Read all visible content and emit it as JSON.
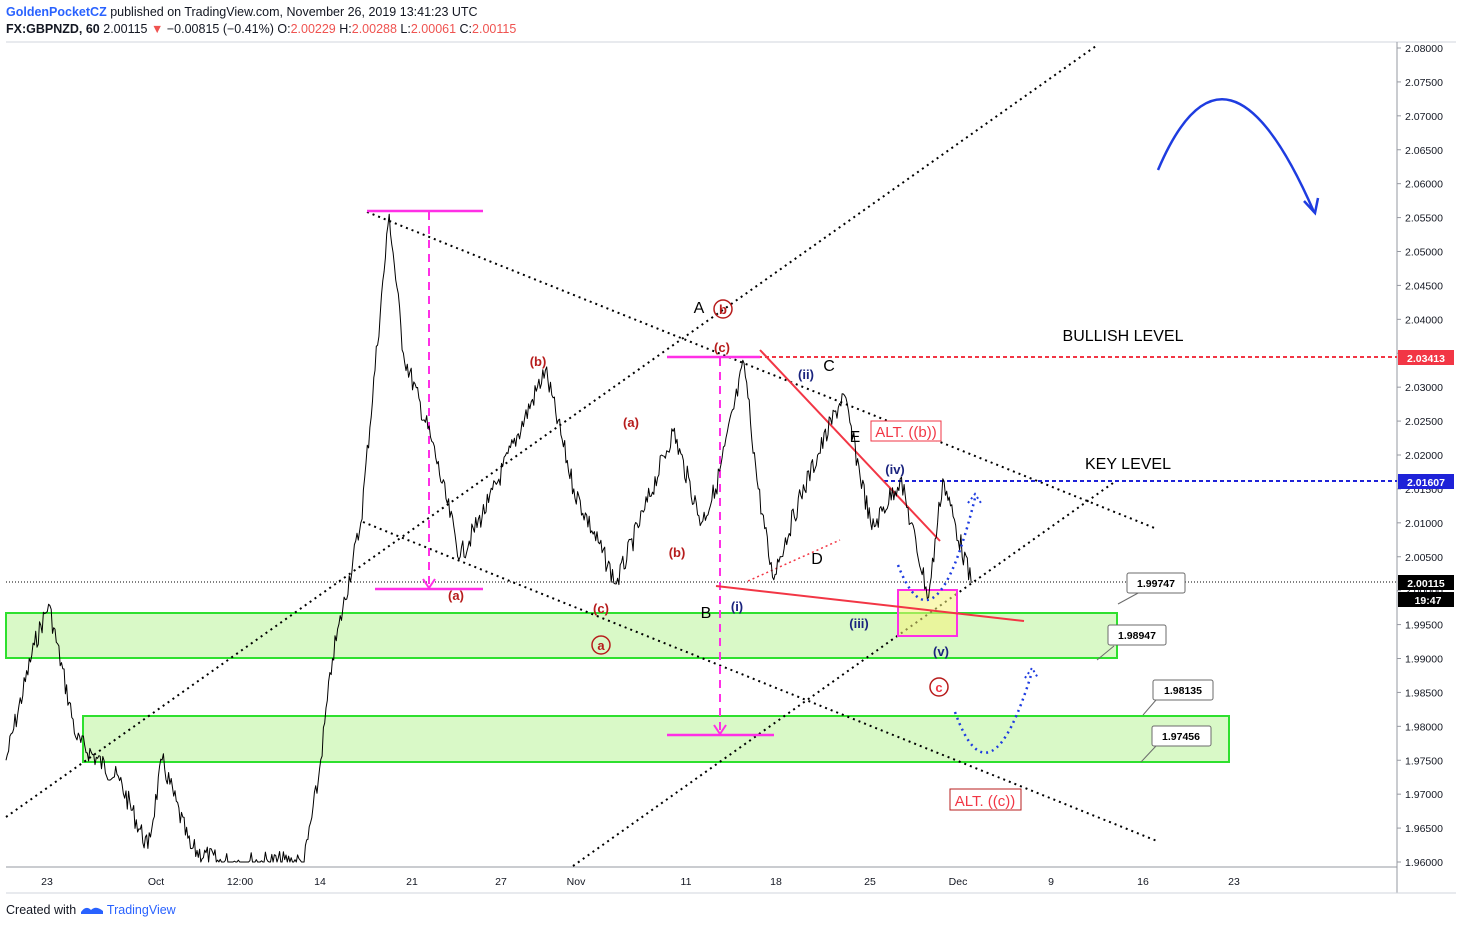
{
  "header": {
    "author": "GoldenPocketCZ",
    "published": "published on TradingView.com, November 26, 2019 13:41:23 UTC",
    "symbol": "FX:GBPNZD, 60",
    "last": "2.00115",
    "change": "−0.00815 (−0.41%)",
    "o_label": "O:",
    "o": "2.00229",
    "h_label": "H:",
    "h": "2.00288",
    "l_label": "L:",
    "l": "2.00061",
    "c_label": "C:",
    "c": "2.00115"
  },
  "footer": {
    "created_with": "Created with",
    "brand": "TradingView"
  },
  "price_axis": {
    "ticks": [
      "2.08000",
      "2.07500",
      "2.07000",
      "2.06500",
      "2.06000",
      "2.05500",
      "2.05000",
      "2.04500",
      "2.04000",
      "2.03500",
      "2.03000",
      "2.02500",
      "2.02000",
      "2.01500",
      "2.01000",
      "2.00500",
      "2.00000",
      "1.99500",
      "1.99000",
      "1.98500",
      "1.98000",
      "1.97500",
      "1.97000",
      "1.96500",
      "1.96000"
    ],
    "bullish_level_tag": "2.03413",
    "key_level_tag": "2.01607",
    "last_price_tag": "2.00115",
    "countdown_tag": "19:47"
  },
  "time_axis": {
    "ticks": [
      "23",
      "Oct",
      "12:00",
      "14",
      "21",
      "27",
      "Nov",
      "11",
      "18",
      "25",
      "Dec",
      "9",
      "16",
      "23"
    ]
  },
  "annotations": {
    "bullish_level": "BULLISH LEVEL",
    "key_level": "KEY LEVEL",
    "alt_b": "ALT. ((b))",
    "alt_c": "ALT. ((c))",
    "wave_A": "A",
    "wave_B": "B",
    "wave_C": "C",
    "wave_D": "D",
    "wave_E": "E",
    "circ_b": "b",
    "circ_a": "a",
    "circ_c": "c",
    "red_a1": "(a)",
    "red_b1": "(b)",
    "red_c1": "(c)",
    "red_a2": "(a)",
    "red_b2": "(b)",
    "red_c2": "(c)",
    "blue_i": "(i)",
    "blue_ii": "(ii)",
    "blue_iii": "(iii)",
    "blue_iv": "(iv)",
    "blue_v": "(v)",
    "callout_1": "1.99747",
    "callout_2": "1.98947",
    "callout_3": "1.98135",
    "callout_4": "1.97456"
  },
  "colors": {
    "bullish_line": "#f23645",
    "key_line": "#1e22d8",
    "zone_fill": "#ccf7b4",
    "zone_border": "#2ee02e",
    "magenta": "#ff2fe6",
    "wave_red": "#b71c1c",
    "wave_blue": "#1a237e",
    "projection": "#1e3ce0",
    "price": "#000000"
  },
  "chart_data": {
    "type": "candlestick",
    "symbol": "FX:GBPNZD",
    "interval": "60",
    "y_range": [
      1.96,
      2.08
    ],
    "x_range": [
      "2019-09-21",
      "2019-12-28"
    ],
    "last_price": 2.00115,
    "levels": [
      {
        "label": "BULLISH LEVEL",
        "value": 2.03413
      },
      {
        "label": "KEY LEVEL",
        "value": 2.01607
      }
    ],
    "zones": [
      {
        "top": 1.99747,
        "bottom": 1.98947
      },
      {
        "top": 1.98135,
        "bottom": 1.97456
      }
    ],
    "price_path": [
      {
        "t": "2019-09-21",
        "p": 1.975
      },
      {
        "t": "2019-09-23",
        "p": 1.992
      },
      {
        "t": "2019-09-24",
        "p": 1.998
      },
      {
        "t": "2019-09-26",
        "p": 1.978
      },
      {
        "t": "2019-09-29",
        "p": 1.972
      },
      {
        "t": "2019-10-01",
        "p": 1.962
      },
      {
        "t": "2019-10-02",
        "p": 1.975
      },
      {
        "t": "2019-10-04",
        "p": 1.962
      },
      {
        "t": "2019-10-06",
        "p": 1.96
      },
      {
        "t": "2019-10-12",
        "p": 1.96
      },
      {
        "t": "2019-10-13",
        "p": 1.972
      },
      {
        "t": "2019-10-14",
        "p": 1.99
      },
      {
        "t": "2019-10-16",
        "p": 2.01
      },
      {
        "t": "2019-10-18",
        "p": 2.0555
      },
      {
        "t": "2019-10-19",
        "p": 2.035
      },
      {
        "t": "2019-10-21",
        "p": 2.022
      },
      {
        "t": "2019-10-23",
        "p": 2.005
      },
      {
        "t": "2019-10-25",
        "p": 2.013
      },
      {
        "t": "2019-10-29",
        "p": 2.0325
      },
      {
        "t": "2019-10-31",
        "p": 2.015
      },
      {
        "t": "2019-11-03",
        "p": 2.001
      },
      {
        "t": "2019-11-05",
        "p": 2.012
      },
      {
        "t": "2019-11-07",
        "p": 2.0235
      },
      {
        "t": "2019-11-09",
        "p": 2.01
      },
      {
        "t": "2019-11-10",
        "p": 2.015
      },
      {
        "t": "2019-11-12",
        "p": 2.0335
      },
      {
        "t": "2019-11-13",
        "p": 2.015
      },
      {
        "t": "2019-11-14",
        "p": 2.002
      },
      {
        "t": "2019-11-16",
        "p": 2.014
      },
      {
        "t": "2019-11-19",
        "p": 2.029
      },
      {
        "t": "2019-11-21",
        "p": 2.009
      },
      {
        "t": "2019-11-23",
        "p": 2.0165
      },
      {
        "t": "2019-11-25",
        "p": 1.999
      },
      {
        "t": "2019-11-26",
        "p": 2.0165
      },
      {
        "t": "2019-11-28",
        "p": 2.00115
      }
    ]
  }
}
